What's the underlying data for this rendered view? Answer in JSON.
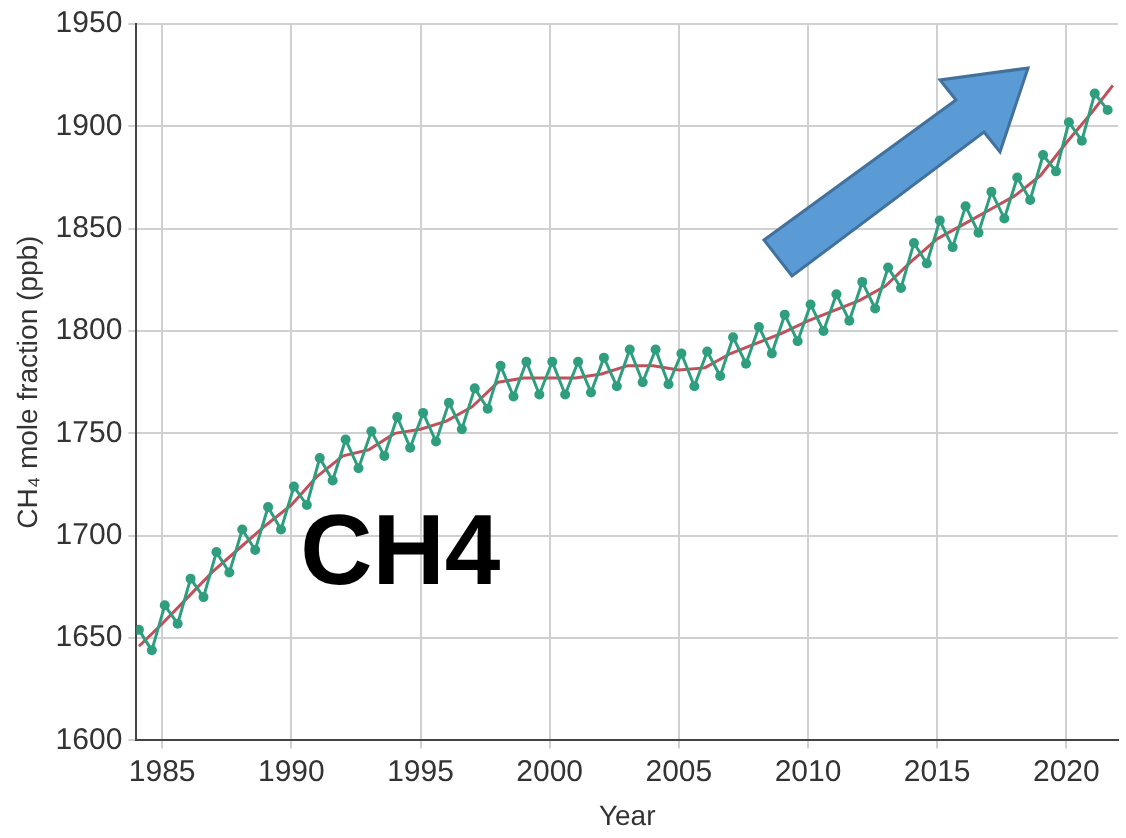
{
  "chart_data": {
    "type": "line",
    "xlabel": "Year",
    "ylabel": "CH₄ mole fraction (ppb)",
    "annotations": [
      "CH4"
    ],
    "xlim": [
      1984,
      2022
    ],
    "xticks": [
      1985,
      1990,
      1995,
      2000,
      2005,
      2010,
      2015,
      2020
    ],
    "ylim": [
      1600,
      1950
    ],
    "yticks": [
      1600,
      1650,
      1700,
      1750,
      1800,
      1850,
      1900,
      1950
    ],
    "grid": true,
    "legend": false,
    "series": [
      {
        "marker": "circle",
        "color": "#2e9e7e",
        "x": [
          1984.1,
          1984.6,
          1985.1,
          1985.6,
          1986.1,
          1986.6,
          1987.1,
          1987.6,
          1988.1,
          1988.6,
          1989.1,
          1989.6,
          1990.1,
          1990.6,
          1991.1,
          1991.6,
          1992.1,
          1992.6,
          1993.1,
          1993.6,
          1994.1,
          1994.6,
          1995.1,
          1995.6,
          1996.1,
          1996.6,
          1997.1,
          1997.6,
          1998.1,
          1998.6,
          1999.1,
          1999.6,
          2000.1,
          2000.6,
          2001.1,
          2001.6,
          2002.1,
          2002.6,
          2003.1,
          2003.6,
          2004.1,
          2004.6,
          2005.1,
          2005.6,
          2006.1,
          2006.6,
          2007.1,
          2007.6,
          2008.1,
          2008.6,
          2009.1,
          2009.6,
          2010.1,
          2010.6,
          2011.1,
          2011.6,
          2012.1,
          2012.6,
          2013.1,
          2013.6,
          2014.1,
          2014.6,
          2015.1,
          2015.6,
          2016.1,
          2016.6,
          2017.1,
          2017.6,
          2018.1,
          2018.6,
          2019.1,
          2019.6,
          2020.1,
          2020.6,
          2021.1,
          2021.6
        ],
        "values": [
          1654,
          1644,
          1666,
          1657,
          1679,
          1670,
          1692,
          1682,
          1703,
          1693,
          1714,
          1703,
          1724,
          1715,
          1738,
          1727,
          1747,
          1733,
          1751,
          1739,
          1758,
          1743,
          1760,
          1746,
          1765,
          1752,
          1772,
          1762,
          1783,
          1768,
          1785,
          1769,
          1785,
          1769,
          1785,
          1770,
          1787,
          1773,
          1791,
          1775,
          1791,
          1774,
          1789,
          1773,
          1790,
          1778,
          1797,
          1784,
          1802,
          1789,
          1808,
          1795,
          1813,
          1800,
          1818,
          1805,
          1824,
          1811,
          1831,
          1821,
          1843,
          1833,
          1854,
          1841,
          1861,
          1848,
          1868,
          1855,
          1875,
          1864,
          1886,
          1878,
          1902,
          1893,
          1916,
          1908
        ]
      },
      {
        "marker": "none",
        "color": "#c0505a",
        "x": [
          1984.1,
          1985,
          1986,
          1987,
          1988,
          1989,
          1990,
          1991,
          1992,
          1993,
          1994,
          1995,
          1996,
          1997,
          1998,
          1999,
          2000,
          2001,
          2002,
          2003,
          2004,
          2005,
          2006,
          2007,
          2008,
          2009,
          2010,
          2011,
          2012,
          2013,
          2014,
          2015,
          2016,
          2017,
          2018,
          2019,
          2020,
          2021,
          2021.8
        ],
        "values": [
          1646,
          1657,
          1670,
          1683,
          1694,
          1705,
          1715,
          1729,
          1739,
          1742,
          1750,
          1752,
          1756,
          1763,
          1775,
          1777,
          1777,
          1777,
          1779,
          1783,
          1783,
          1781,
          1782,
          1789,
          1794,
          1799,
          1805,
          1810,
          1815,
          1822,
          1834,
          1845,
          1852,
          1859,
          1866,
          1876,
          1892,
          1907,
          1920
        ]
      }
    ]
  }
}
